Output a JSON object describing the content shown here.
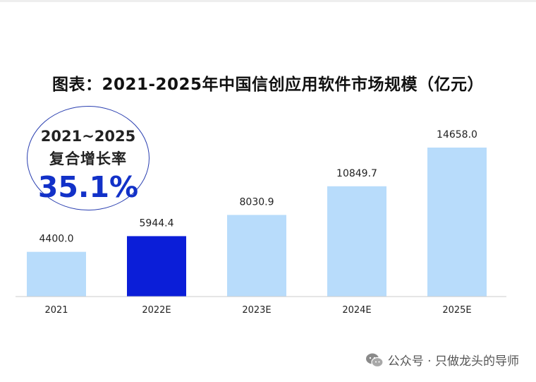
{
  "chart_data": {
    "type": "bar",
    "title": "图表：2021-2025年中国信创应用软件市场规模（亿元）",
    "categories": [
      "2021",
      "2022E",
      "2023E",
      "2024E",
      "2025E"
    ],
    "values": [
      4400.0,
      5944.4,
      8030.9,
      10849.7,
      14658.0
    ],
    "value_labels": [
      "4400.0",
      "5944.4",
      "8030.9",
      "10849.7",
      "14658.0"
    ],
    "ylim": [
      0,
      14658.0
    ],
    "xlabel": "",
    "ylabel": "",
    "grid": false,
    "legend": "none",
    "colors": {
      "default": "#b8dcfb",
      "highlight": "#0b1ed8"
    },
    "highlight_index": 1
  },
  "cagr": {
    "range": "2021~2025",
    "label": "复合增长率",
    "value": "35.1%",
    "border_color": "#2a3fb0",
    "value_color": "#1231c8"
  },
  "watermark": {
    "text": "公众号 · 只做龙头的导师",
    "icon": "wechat-icon"
  }
}
